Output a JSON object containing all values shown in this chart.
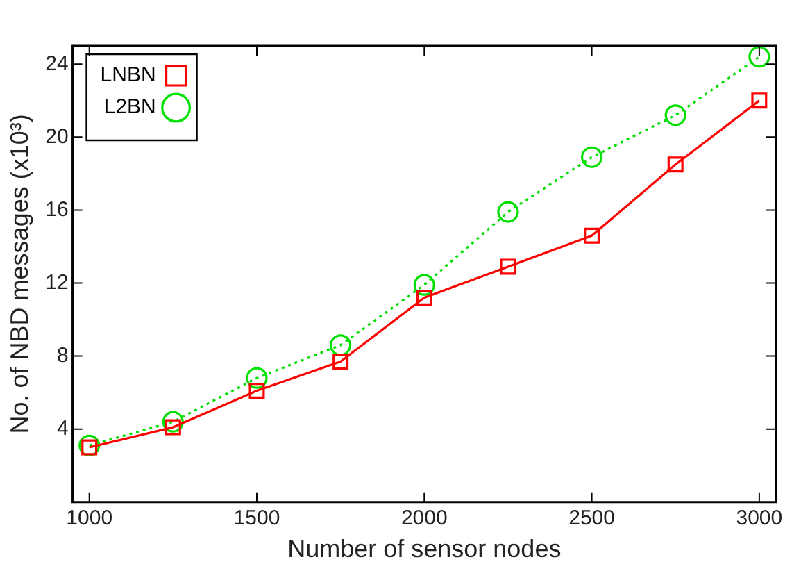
{
  "chart_data": {
    "type": "line",
    "xlabel": "Number of sensor nodes",
    "ylabel": "No. of NBD messages (x10³)",
    "x": [
      1000,
      1250,
      1500,
      1750,
      2000,
      2250,
      2500,
      2750,
      3000
    ],
    "series": [
      {
        "name": "LNBN",
        "color": "#ff0000",
        "marker": "square",
        "line_style": "solid",
        "values": [
          3.0,
          4.1,
          6.1,
          7.7,
          11.2,
          12.9,
          14.6,
          18.5,
          22.0
        ]
      },
      {
        "name": "L2BN",
        "color": "#00e000",
        "marker": "circle",
        "line_style": "dotted",
        "values": [
          3.1,
          4.4,
          6.8,
          8.6,
          11.9,
          15.9,
          18.9,
          21.2,
          24.4
        ]
      }
    ],
    "xlim": [
      950,
      3050
    ],
    "xticks": [
      1000,
      1500,
      2000,
      2500,
      3000
    ],
    "ylim": [
      0,
      25
    ],
    "yticks": [
      4,
      8,
      12,
      16,
      20,
      24
    ],
    "grid": false,
    "legend": "top left"
  }
}
